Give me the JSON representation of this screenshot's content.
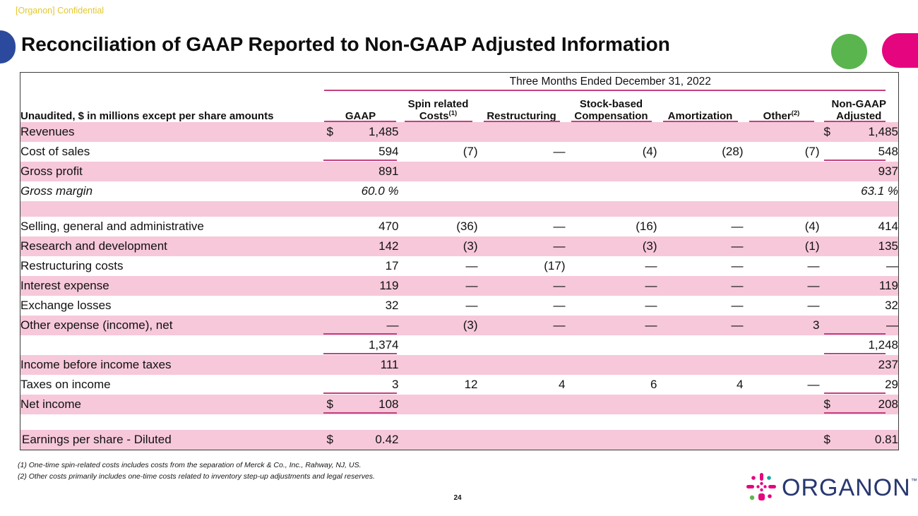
{
  "page": {
    "confidential_label": "[Organon] Confidential",
    "title": "Reconciliation of GAAP Reported to Non-GAAP Adjusted Information",
    "page_number": "24"
  },
  "theme": {
    "pink_row": "#f6c8da",
    "line_pink": "#c2417f",
    "magenta": "#e5057f",
    "green": "#5ab54f",
    "blue": "#2b4a9d",
    "logo_navy": "#27376f",
    "confidential_yellow": "#e3c82f"
  },
  "table": {
    "period_header": "Three Months Ended December 31, 2022",
    "row_header": "Unaudited, $ in millions except per share amounts",
    "columns": [
      {
        "line1": "",
        "line2": "GAAP",
        "sup": ""
      },
      {
        "line1": "Spin related",
        "line2": "Costs",
        "sup": "(1)"
      },
      {
        "line1": "",
        "line2": "Restructuring",
        "sup": ""
      },
      {
        "line1": "Stock-based",
        "line2": "Compensation",
        "sup": ""
      },
      {
        "line1": "",
        "line2": "Amortization",
        "sup": ""
      },
      {
        "line1": "",
        "line2": "Other",
        "sup": "(2)"
      },
      {
        "line1": "Non-GAAP",
        "line2": "Adjusted",
        "sup": ""
      }
    ],
    "rows": [
      {
        "label": "Revenues",
        "bg": "pink",
        "cells": [
          {
            "d": "$",
            "v": "1,485"
          },
          "",
          "",
          "",
          "",
          "",
          {
            "d": "$",
            "v": "1,485"
          }
        ]
      },
      {
        "label": "Cost of sales",
        "bg": "white",
        "ul": [
          0,
          6
        ],
        "cells": [
          "594",
          "(7)",
          "—",
          "(4)",
          "(28)",
          "(7)",
          "548"
        ]
      },
      {
        "label": "Gross profit",
        "bg": "pink",
        "cells": [
          "891",
          "",
          "",
          "",
          "",
          "",
          "937"
        ]
      },
      {
        "label": "Gross margin",
        "bg": "white",
        "italic": true,
        "cells": [
          "60.0 %",
          "",
          "",
          "",
          "",
          "",
          "63.1 %"
        ]
      },
      {
        "label": "",
        "bg": "pink",
        "spacer": true,
        "cells": [
          "",
          "",
          "",
          "",
          "",
          "",
          ""
        ]
      },
      {
        "label": "Selling, general and administrative",
        "bg": "white",
        "cells": [
          "470",
          "(36)",
          "—",
          "(16)",
          "—",
          "(4)",
          "414"
        ]
      },
      {
        "label": "Research and development",
        "bg": "pink",
        "cells": [
          "142",
          "(3)",
          "—",
          "(3)",
          "—",
          "(1)",
          "135"
        ]
      },
      {
        "label": "Restructuring costs",
        "bg": "white",
        "cells": [
          "17",
          "—",
          "(17)",
          "—",
          "—",
          "—",
          "—"
        ]
      },
      {
        "label": "Interest expense",
        "bg": "pink",
        "cells": [
          "119",
          "—",
          "—",
          "—",
          "—",
          "—",
          "119"
        ]
      },
      {
        "label": "Exchange losses",
        "bg": "white",
        "cells": [
          "32",
          "—",
          "—",
          "—",
          "—",
          "—",
          "32"
        ]
      },
      {
        "label": "Other expense (income), net",
        "bg": "pink",
        "ul": [
          0,
          6
        ],
        "cells": [
          "—",
          "(3)",
          "—",
          "—",
          "—",
          "3",
          "—"
        ]
      },
      {
        "label": "",
        "bg": "white",
        "ul": [
          0,
          6
        ],
        "cells": [
          "1,374",
          "",
          "",
          "",
          "",
          "",
          "1,248"
        ]
      },
      {
        "label": "Income before income taxes",
        "bg": "pink",
        "cells": [
          "111",
          "",
          "",
          "",
          "",
          "",
          "237"
        ]
      },
      {
        "label": "Taxes on income",
        "bg": "white",
        "ul": [
          0,
          6
        ],
        "cells": [
          "3",
          "12",
          "4",
          "6",
          "4",
          "—",
          "29"
        ]
      },
      {
        "label": "Net income",
        "bg": "pink",
        "ul": [
          0,
          6
        ],
        "cells": [
          {
            "d": "$",
            "v": "108"
          },
          "",
          "",
          "",
          "",
          "",
          {
            "d": "$",
            "v": "208"
          }
        ]
      },
      {
        "label": "",
        "bg": "white",
        "spacer": true,
        "cells": [
          "",
          "",
          "",
          "",
          "",
          "",
          ""
        ]
      },
      {
        "label": "Earnings per share - Diluted",
        "bg": "pink",
        "flush": true,
        "cells": [
          {
            "d": "$",
            "v": "0.42"
          },
          "",
          "",
          "",
          "",
          "",
          {
            "d": "$",
            "v": "0.81"
          }
        ]
      }
    ]
  },
  "footnotes": [
    "(1) One-time spin-related costs includes costs from the separation of Merck & Co., Inc., Rahway, NJ, US.",
    "(2) Other costs primarily includes one-time costs related to inventory step-up adjustments and legal reserves.",
    "(1) One-time  spin-related costs includes costs from the separation of Merck & Co., Inc., Rahway, NJ, US."
  ],
  "logo": {
    "text": "ORGANON",
    "tm": "™"
  }
}
